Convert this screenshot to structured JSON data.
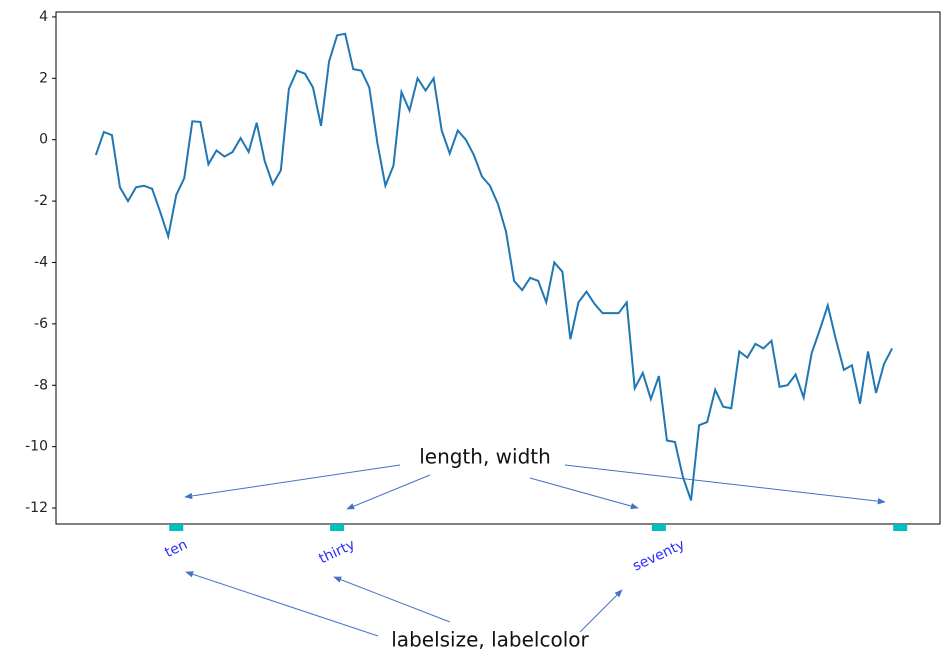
{
  "chart_data": {
    "type": "line",
    "x": [
      0,
      1,
      2,
      3,
      4,
      5,
      6,
      7,
      8,
      9,
      10,
      11,
      12,
      13,
      14,
      15,
      16,
      17,
      18,
      19,
      20,
      21,
      22,
      23,
      24,
      25,
      26,
      27,
      28,
      29,
      30,
      31,
      32,
      33,
      34,
      35,
      36,
      37,
      38,
      39,
      40,
      41,
      42,
      43,
      44,
      45,
      46,
      47,
      48,
      49,
      50,
      51,
      52,
      53,
      54,
      55,
      56,
      57,
      58,
      59,
      60,
      61,
      62,
      63,
      64,
      65,
      66,
      67,
      68,
      69,
      70,
      71,
      72,
      73,
      74,
      75,
      76,
      77,
      78,
      79,
      80,
      81,
      82,
      83,
      84,
      85,
      86,
      87,
      88,
      89,
      90,
      91,
      92,
      93,
      94,
      95,
      96,
      97,
      98,
      99
    ],
    "series": [
      {
        "color": "#1f77b4",
        "values": [
          -0.5,
          0.25,
          0.15,
          -1.55,
          -2.0,
          -1.55,
          -1.5,
          -1.6,
          -2.35,
          -3.15,
          -1.8,
          -1.25,
          0.6,
          0.58,
          -0.8,
          -0.35,
          -0.55,
          -0.4,
          0.05,
          -0.4,
          0.55,
          -0.7,
          -1.45,
          -1.0,
          1.65,
          2.25,
          2.15,
          1.7,
          0.45,
          2.55,
          3.4,
          3.45,
          2.3,
          2.25,
          1.7,
          -0.1,
          -1.5,
          -0.85,
          1.55,
          0.95,
          2.0,
          1.6,
          2.0,
          0.3,
          -0.45,
          0.3,
          0.0,
          -0.5,
          -1.2,
          -1.5,
          -2.1,
          -3.0,
          -4.6,
          -4.9,
          -4.5,
          -4.6,
          -5.3,
          -4.0,
          -4.3,
          -6.5,
          -5.3,
          -4.95,
          -5.35,
          -5.65,
          -5.65,
          -5.65,
          -5.3,
          -8.1,
          -7.6,
          -8.45,
          -7.7,
          -9.8,
          -9.85,
          -11.0,
          -11.75,
          -9.3,
          -9.2,
          -8.15,
          -8.7,
          -8.75,
          -6.9,
          -7.1,
          -6.65,
          -6.8,
          -6.55,
          -8.05,
          -8.0,
          -7.65,
          -8.4,
          -6.95,
          -6.2,
          -5.4,
          -6.5,
          -7.5,
          -7.35,
          -8.6,
          -6.9,
          -8.25,
          -7.3,
          -6.8
        ]
      }
    ],
    "xlim": [
      -4.95,
      104.95
    ],
    "ylim": [
      -12.52,
      4.16
    ],
    "xticks": [
      {
        "value": 10,
        "label": "ten"
      },
      {
        "value": 30,
        "label": "thirty"
      },
      {
        "value": 70,
        "label": "seventy"
      },
      {
        "value": 100,
        "label": null
      }
    ],
    "yticks": [
      4,
      2,
      0,
      -2,
      -4,
      -6,
      -8,
      -10,
      -12
    ],
    "x_tick_color": "#00bfbf",
    "x_tick_label_color": "#2b2bff",
    "annotations": [
      "length, width",
      "labelsize, labelcolor"
    ]
  }
}
